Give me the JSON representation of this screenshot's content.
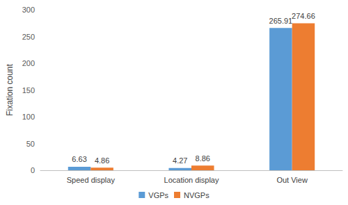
{
  "chart_data": {
    "type": "bar",
    "categories": [
      "Speed display",
      "Location display",
      "Out View"
    ],
    "series": [
      {
        "name": "VGPs",
        "color": "#5b9bd5",
        "values": [
          6.63,
          4.27,
          265.91
        ]
      },
      {
        "name": "NVGPs",
        "color": "#ed7d31",
        "values": [
          4.86,
          8.86,
          274.66
        ]
      }
    ],
    "y_label": "Fixation count",
    "ylim": [
      0,
      300
    ],
    "yticks": [
      0,
      50,
      100,
      150,
      200,
      250,
      300
    ],
    "grid": false,
    "legend": "bottom",
    "data_labels": true
  }
}
